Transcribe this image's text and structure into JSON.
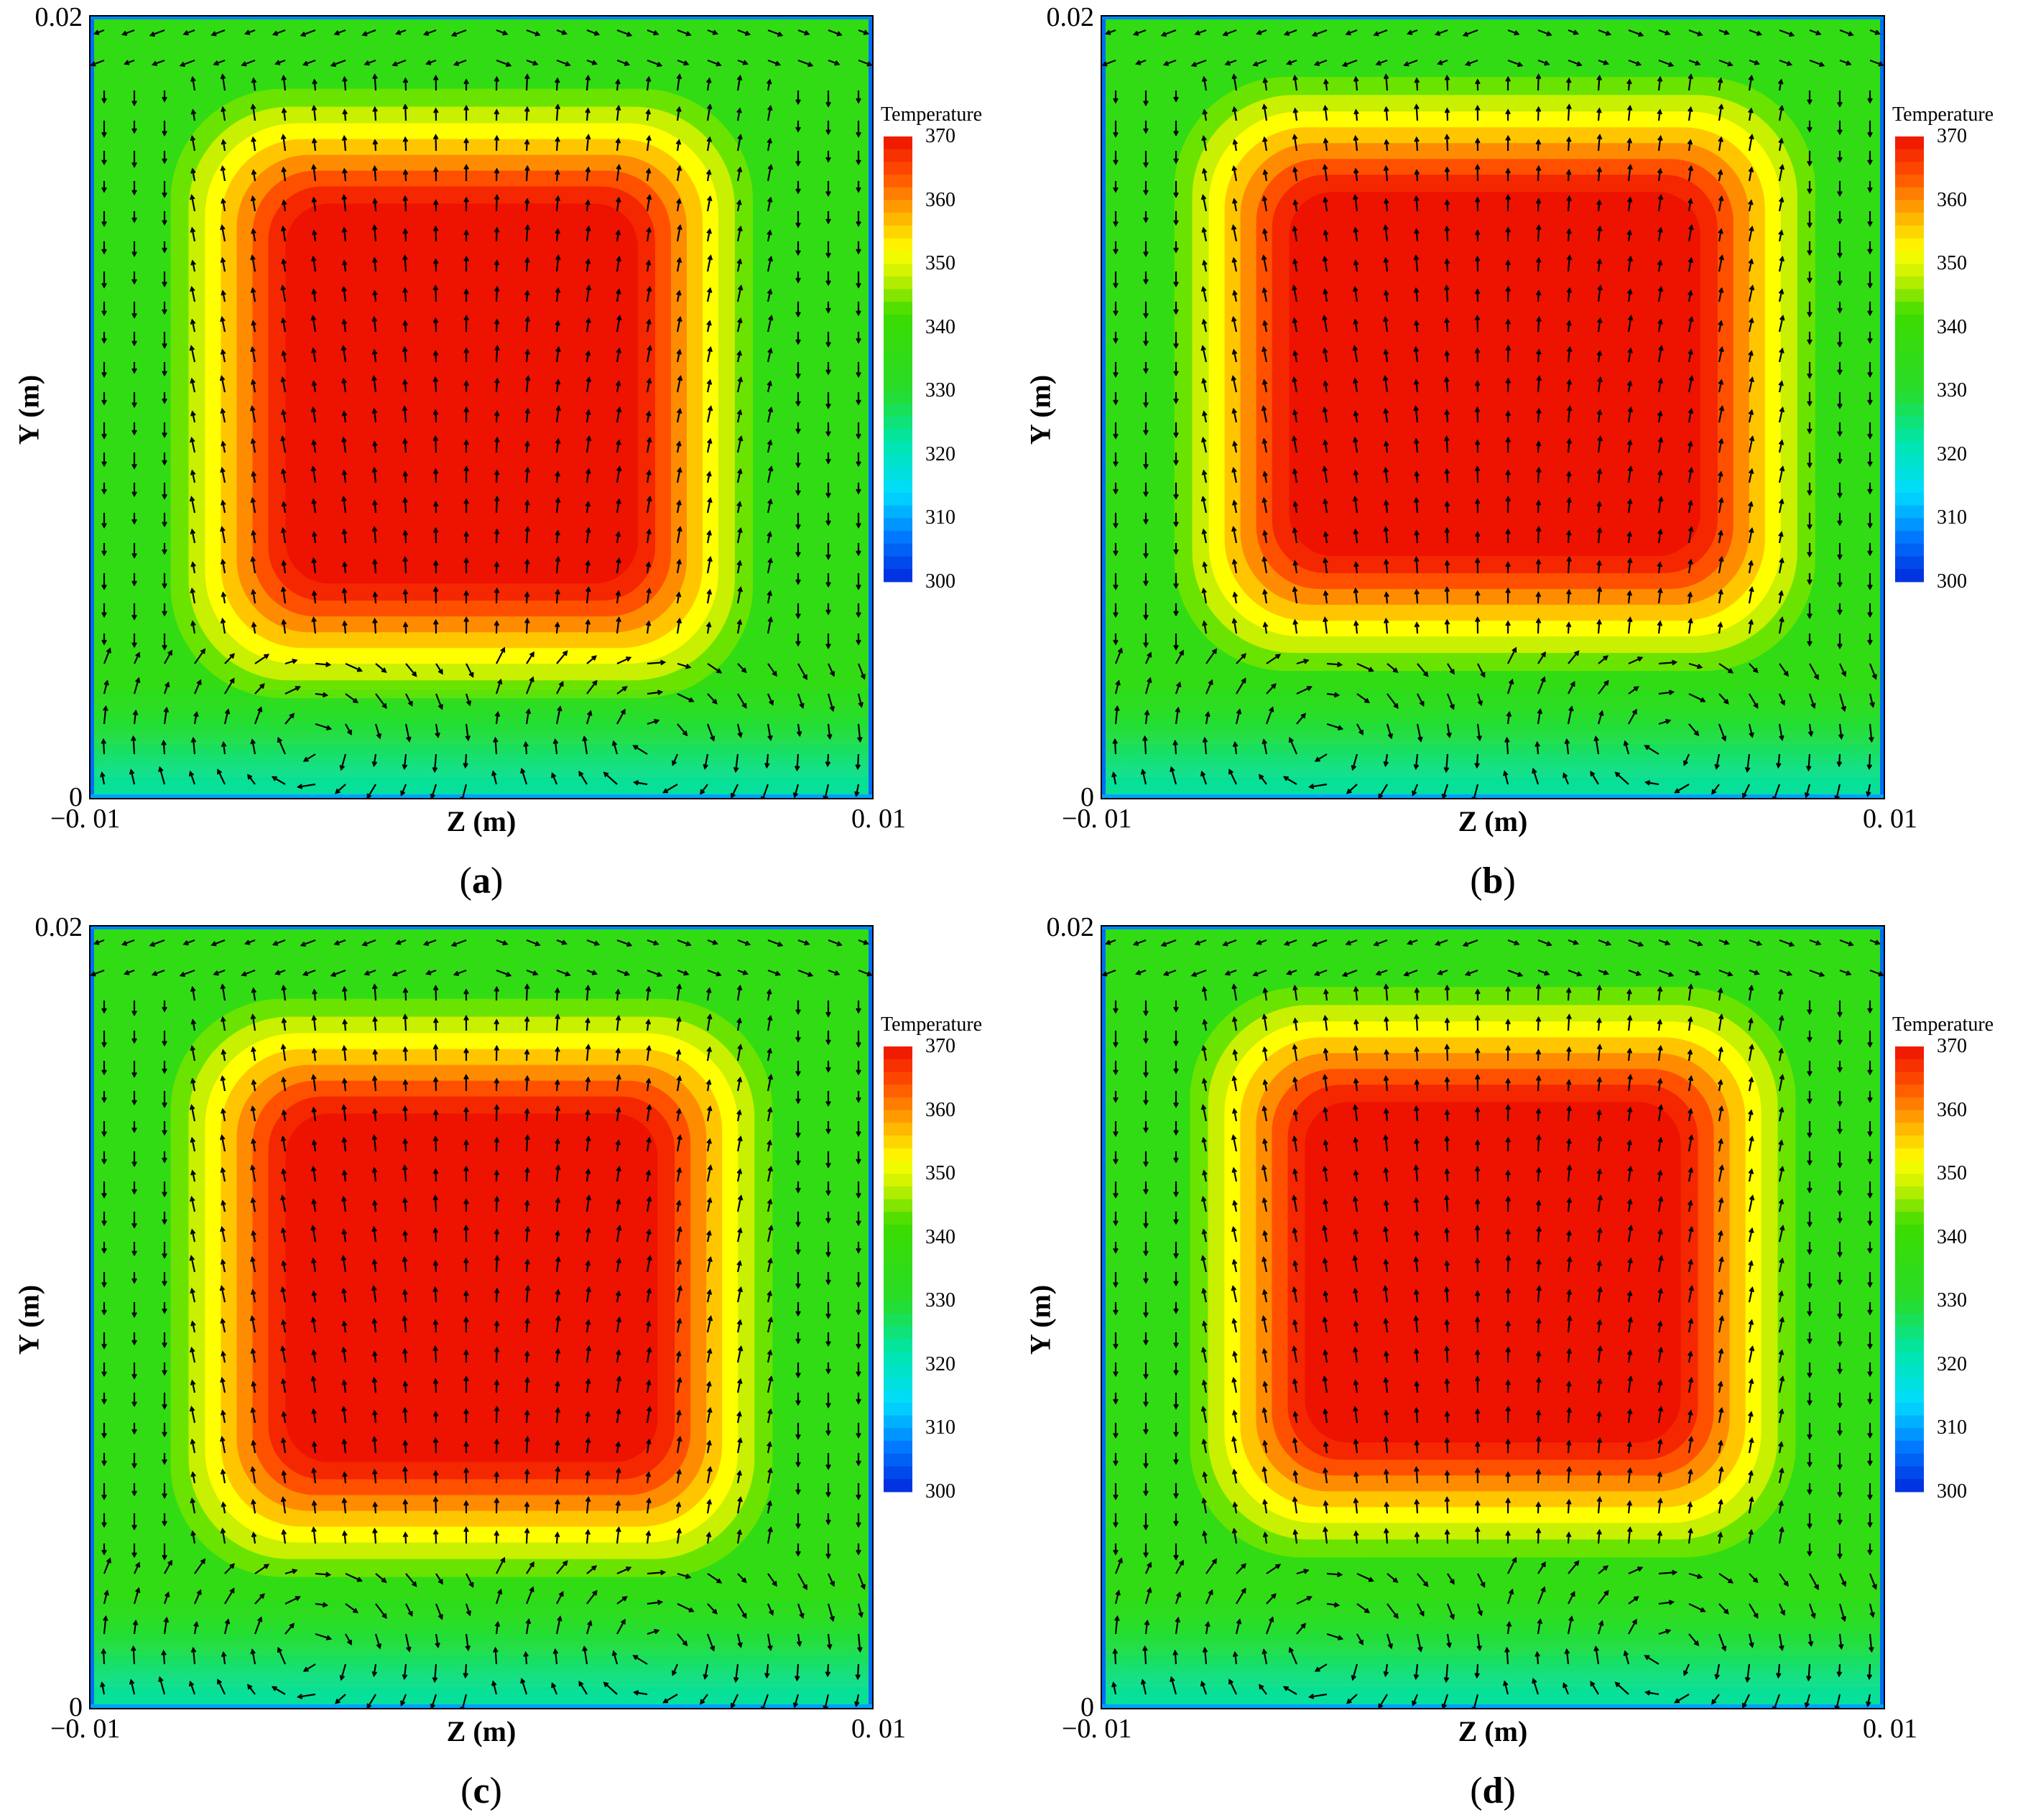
{
  "colors": {
    "cold": "#0033dd",
    "cool": "#00ccff",
    "mid": "#22dd22",
    "warm": "#ffff00",
    "hot": "#ff8800",
    "max": "#ee1100",
    "arrow": "#000000"
  },
  "chart_data": [
    {
      "type": "heatmap",
      "panel": "(a)",
      "caption_letter": "a",
      "xlabel": "Z (m)",
      "ylabel": "Y (m)",
      "xlim": [
        -0.01,
        0.01
      ],
      "ylim": [
        0,
        0.02
      ],
      "x_ticks": [
        "−0. 01",
        "0. 01"
      ],
      "y_ticks": [
        "0.02",
        "0"
      ],
      "colorbar": {
        "title": "Temperature",
        "ticks": [
          "370",
          "360",
          "350",
          "340",
          "330",
          "320",
          "310",
          "300"
        ],
        "range": [
          300,
          370
        ]
      },
      "hot_core": {
        "z": [
          -0.005,
          0.004
        ],
        "y": [
          0.0055,
          0.0152
        ]
      },
      "vector_field": "velocity arrows, upward in core, two vortex pairs near bottom"
    },
    {
      "type": "heatmap",
      "panel": "(b)",
      "caption_letter": "b",
      "xlabel": "Z (m)",
      "ylabel": "Y (m)",
      "xlim": [
        -0.01,
        0.01
      ],
      "ylim": [
        0,
        0.02
      ],
      "x_ticks": [
        "−0. 01",
        "0. 01"
      ],
      "y_ticks": [
        "0.02",
        "0"
      ],
      "colorbar": {
        "title": "Temperature",
        "ticks": [
          "370",
          "360",
          "350",
          "340",
          "330",
          "320",
          "310",
          "300"
        ],
        "range": [
          300,
          370
        ]
      },
      "hot_core": {
        "z": [
          -0.0052,
          0.0053
        ],
        "y": [
          0.0062,
          0.0155
        ]
      },
      "vector_field": "velocity arrows, strong vortex pair near bottom corners"
    },
    {
      "type": "heatmap",
      "panel": "(c)",
      "caption_letter": "c",
      "xlabel": "Z (m)",
      "ylabel": "Y (m)",
      "xlim": [
        -0.01,
        0.01
      ],
      "ylim": [
        0,
        0.02
      ],
      "x_ticks": [
        "−0. 01",
        "0. 01"
      ],
      "y_ticks": [
        "0.02",
        "0"
      ],
      "colorbar": {
        "title": "Temperature",
        "ticks": [
          "370",
          "360",
          "350",
          "340",
          "330",
          "320",
          "310",
          "300"
        ],
        "range": [
          300,
          370
        ]
      },
      "hot_core": {
        "z": [
          -0.005,
          0.0045
        ],
        "y": [
          0.0063,
          0.0152
        ]
      },
      "vector_field": "velocity arrows, two vortex pairs near bottom"
    },
    {
      "type": "heatmap",
      "panel": "(d)",
      "caption_letter": "d",
      "xlabel": "Z (m)",
      "ylabel": "Y (m)",
      "xlim": [
        -0.01,
        0.01
      ],
      "ylim": [
        0,
        0.02
      ],
      "x_ticks": [
        "−0. 01",
        "0. 01"
      ],
      "y_ticks": [
        "0.02",
        "0"
      ],
      "colorbar": {
        "title": "Temperature",
        "ticks": [
          "370",
          "360",
          "350",
          "340",
          "330",
          "320",
          "310",
          "300"
        ],
        "range": [
          300,
          370
        ]
      },
      "hot_core": {
        "z": [
          -0.0048,
          0.0048
        ],
        "y": [
          0.0068,
          0.0155
        ]
      },
      "vector_field": "velocity arrows, converging flow near bottom center-sides"
    }
  ]
}
